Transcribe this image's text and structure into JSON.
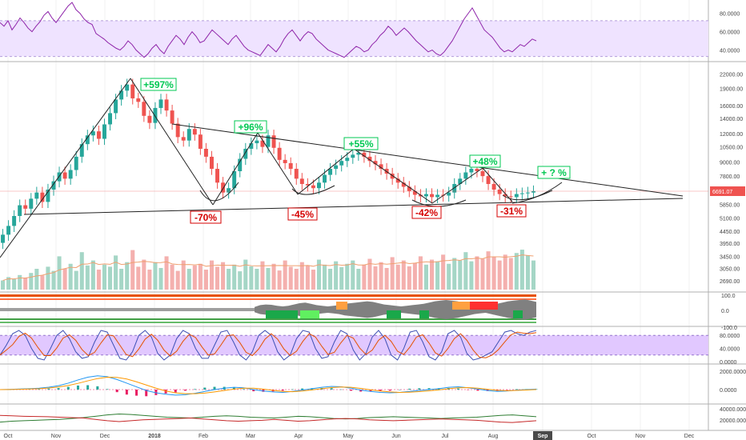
{
  "chart_data": [
    {
      "panel": "rsi-top",
      "type": "line",
      "y_ticks": [
        "80.0000",
        "60.0000",
        "40.0000"
      ],
      "ylim": [
        30,
        92
      ],
      "band": [
        33,
        72
      ],
      "colors": {
        "line": "#8e24aa",
        "band": "#efe3ff"
      },
      "values": [
        70,
        66,
        72,
        62,
        68,
        75,
        70,
        64,
        60,
        66,
        71,
        78,
        82,
        75,
        70,
        76,
        82,
        88,
        92,
        84,
        80,
        74,
        70,
        68,
        58,
        55,
        52,
        48,
        45,
        42,
        40,
        44,
        50,
        46,
        40,
        36,
        32,
        36,
        42,
        46,
        40,
        36,
        44,
        50,
        56,
        52,
        46,
        54,
        60,
        55,
        48,
        50,
        56,
        62,
        58,
        54,
        50,
        46,
        52,
        56,
        50,
        44,
        40,
        38,
        36,
        34,
        40,
        46,
        42,
        38,
        44,
        52,
        58,
        62,
        56,
        50,
        56,
        60,
        58,
        52,
        48,
        44,
        40,
        38,
        36,
        34,
        32,
        36,
        40,
        44,
        42,
        38,
        40,
        46,
        50,
        56,
        60,
        66,
        62,
        56,
        60,
        64,
        60,
        55,
        50,
        46,
        42,
        38,
        40,
        36,
        34,
        38,
        44,
        50,
        58,
        66,
        74,
        80,
        86,
        78,
        70,
        62,
        58,
        54,
        48,
        42,
        38,
        40,
        38,
        42,
        46,
        44,
        48,
        52,
        50
      ]
    },
    {
      "panel": "price",
      "type": "candlestick",
      "y_ticks": [
        "22000.00",
        "19000.00",
        "16000.00",
        "14000.00",
        "12000.00",
        "10500.00",
        "9000.00",
        "7800.00",
        "6800.00",
        "5850.00",
        "5100.00",
        "4450.00",
        "3950.00",
        "3450.00",
        "3050.00",
        "2690.00"
      ],
      "last_price_label": "6691.07",
      "closes": [
        4300,
        4700,
        5200,
        5800,
        5600,
        6200,
        6600,
        6000,
        6800,
        7400,
        8100,
        7600,
        8300,
        9500,
        10800,
        11800,
        12300,
        11400,
        13200,
        14800,
        17000,
        18600,
        19800,
        17200,
        16600,
        14400,
        13400,
        15600,
        17000,
        15200,
        13300,
        11600,
        11200,
        12600,
        11900,
        10300,
        9500,
        8400,
        7300,
        6600,
        6900,
        8200,
        9300,
        10300,
        10900,
        11200,
        10500,
        11800,
        10400,
        9200,
        8900,
        8400,
        7600,
        7200,
        7100,
        6900,
        7300,
        7900,
        8400,
        8700,
        9100,
        9400,
        9700,
        9900,
        9500,
        9100,
        8800,
        8400,
        8000,
        7600,
        7300,
        7000,
        6700,
        6450,
        6350,
        6500,
        6300,
        6450,
        6400,
        6600,
        7200,
        7600,
        8100,
        8400,
        8200,
        7800,
        7200,
        6800,
        6500,
        6350,
        6300,
        6500,
        6550,
        6600,
        6691
      ],
      "volumes": [
        0.22,
        0.3,
        0.25,
        0.35,
        0.28,
        0.4,
        0.5,
        0.34,
        0.55,
        0.45,
        0.8,
        0.5,
        0.62,
        0.45,
        0.9,
        0.58,
        0.7,
        0.48,
        0.6,
        0.55,
        0.82,
        0.5,
        0.66,
        0.95,
        0.55,
        0.72,
        0.48,
        0.66,
        0.52,
        0.8,
        0.6,
        0.45,
        0.7,
        0.5,
        0.58,
        0.62,
        0.48,
        0.7,
        0.55,
        0.66,
        0.5,
        0.6,
        0.44,
        0.72,
        0.56,
        0.5,
        0.68,
        0.52,
        0.62,
        0.46,
        0.7,
        0.55,
        0.5,
        0.66,
        0.58,
        0.48,
        0.72,
        0.6,
        0.5,
        0.68,
        0.54,
        0.62,
        0.7,
        0.5,
        0.6,
        0.74,
        0.56,
        0.66,
        0.52,
        0.78,
        0.6,
        0.7,
        0.56,
        0.64,
        0.8,
        0.6,
        0.72,
        0.68,
        0.84,
        0.62,
        0.76,
        0.7,
        0.9,
        0.68,
        0.8,
        0.74,
        0.92,
        0.78,
        0.7,
        0.84,
        0.76,
        0.88,
        0.96,
        0.82,
        0.7
      ],
      "colors": {
        "up": "#26a69a",
        "down": "#ef5350",
        "up_vol": "#a5d6c6",
        "down_vol": "#f4b0ae",
        "vol_ma": "#f0a070",
        "last_price": "#ef5350"
      },
      "annotations": [
        {
          "label": "+597%",
          "color": "#00c853"
        },
        {
          "label": "-70%",
          "color": "#d50000"
        },
        {
          "label": "+96%",
          "color": "#00c853"
        },
        {
          "label": "-45%",
          "color": "#d50000"
        },
        {
          "label": "+55%",
          "color": "#00c853"
        },
        {
          "label": "-42%",
          "color": "#d50000"
        },
        {
          "label": "+48%",
          "color": "#00c853"
        },
        {
          "label": "-31%",
          "color": "#d50000"
        },
        {
          "label": "+ ? %",
          "color": "#00c853"
        }
      ]
    },
    {
      "panel": "momentum-band",
      "type": "area",
      "y_ticks": [
        "100.0",
        "0.0",
        "-100.0"
      ],
      "colors": {
        "gray": "#808080",
        "orange": "#ffa040",
        "red": "#ff3030",
        "green": "#1aa84a",
        "lightgreen": "#60f060",
        "top_line": "#e65100",
        "top_line2": "#ff7043",
        "bottom_line": "#43a047",
        "bottom_line2": "#66bb6a"
      },
      "gray_area": [
        8,
        14,
        16,
        15,
        12,
        10,
        12,
        16,
        20,
        22,
        18,
        14,
        12,
        10,
        12,
        14,
        18,
        20,
        22,
        24,
        26,
        24,
        20,
        16,
        14,
        12,
        10,
        12,
        14,
        16,
        18,
        22,
        26,
        28,
        30,
        28,
        26,
        22,
        18,
        14,
        12,
        10,
        14,
        18,
        22,
        26,
        28,
        30,
        32,
        28,
        24
      ]
    },
    {
      "panel": "stoch-rsi",
      "type": "line",
      "y_ticks": [
        "80.0000",
        "40.0000",
        "0.0000"
      ],
      "band": [
        20,
        80
      ],
      "colors": {
        "k": "#3f51b5",
        "d": "#e65100",
        "band": "#e1c8ff"
      },
      "values_k": [
        20,
        50,
        85,
        95,
        80,
        40,
        10,
        5,
        40,
        80,
        95,
        70,
        30,
        10,
        15,
        60,
        95,
        90,
        50,
        10,
        5,
        30,
        80,
        95,
        75,
        25,
        5,
        20,
        70,
        95,
        85,
        40,
        10,
        10,
        50,
        90,
        95,
        60,
        20,
        5,
        30,
        80,
        95,
        80,
        30,
        5,
        20,
        70,
        95,
        90,
        40,
        10,
        15,
        60,
        95,
        85,
        35,
        5,
        25,
        75,
        95,
        70,
        20,
        5,
        40,
        90,
        95,
        60,
        15,
        5,
        30,
        85,
        95,
        75,
        25,
        5,
        10,
        20,
        30,
        60,
        90,
        95,
        85,
        80,
        90,
        95
      ]
    },
    {
      "panel": "macd",
      "type": "line",
      "y_ticks": [
        "2000.0000",
        "0.0000"
      ],
      "colors": {
        "macd": "#2196f3",
        "signal": "#ff9800",
        "hist_up": "#26a69a",
        "hist_down": "#e91e63"
      },
      "macd": [
        0,
        20,
        60,
        100,
        150,
        260,
        420,
        700,
        1050,
        1350,
        1500,
        1400,
        1100,
        700,
        300,
        -100,
        -350,
        -500,
        -600,
        -550,
        -400,
        -200,
        0,
        150,
        250,
        200,
        0,
        -150,
        -250,
        -300,
        -200,
        -50,
        100,
        250,
        350,
        300,
        150,
        -50,
        -200,
        -300,
        -350,
        -300,
        -200,
        -100,
        0,
        100,
        250,
        300,
        200,
        50,
        -100,
        -200,
        -150,
        -50,
        0,
        50
      ],
      "signal": [
        0,
        10,
        30,
        60,
        100,
        170,
        280,
        450,
        680,
        950,
        1200,
        1350,
        1330,
        1150,
        850,
        500,
        150,
        -150,
        -350,
        -450,
        -450,
        -380,
        -250,
        -100,
        50,
        150,
        150,
        50,
        -80,
        -200,
        -230,
        -150,
        -30,
        100,
        220,
        280,
        250,
        130,
        -20,
        -150,
        -250,
        -300,
        -280,
        -220,
        -130,
        -30,
        100,
        200,
        220,
        150,
        30,
        -80,
        -120,
        -90,
        -40,
        10
      ]
    },
    {
      "panel": "bottom-lines",
      "type": "line",
      "y_ticks": [
        "40000.0000",
        "20000.0000"
      ],
      "colors": {
        "green": "#2e7d32",
        "red": "#c62828"
      },
      "green": [
        0.3,
        0.34,
        0.36,
        0.38,
        0.4,
        0.42,
        0.46,
        0.5,
        0.56,
        0.62,
        0.66,
        0.64,
        0.6,
        0.56,
        0.52,
        0.5,
        0.48,
        0.52,
        0.56,
        0.58,
        0.56,
        0.52,
        0.5,
        0.48,
        0.52,
        0.56,
        0.54,
        0.5,
        0.46,
        0.44,
        0.46,
        0.5,
        0.52,
        0.54,
        0.52,
        0.5,
        0.48,
        0.46,
        0.48,
        0.5,
        0.52,
        0.56,
        0.6,
        0.62,
        0.58,
        0.54
      ],
      "red": [
        0.6,
        0.58,
        0.56,
        0.55,
        0.54,
        0.52,
        0.5,
        0.48,
        0.42,
        0.36,
        0.32,
        0.36,
        0.4,
        0.42,
        0.44,
        0.46,
        0.48,
        0.44,
        0.4,
        0.36,
        0.34,
        0.36,
        0.38,
        0.42,
        0.38,
        0.34,
        0.36,
        0.4,
        0.44,
        0.46,
        0.44,
        0.4,
        0.38,
        0.36,
        0.38,
        0.4,
        0.42,
        0.44,
        0.42,
        0.4,
        0.38,
        0.34,
        0.3,
        0.28,
        0.32,
        0.36
      ]
    }
  ],
  "x_axis": {
    "labels": [
      "Oct",
      "Nov",
      "Dec",
      "2018",
      "Feb",
      "Mar",
      "Apr",
      "May",
      "Jun",
      "Jul",
      "Aug",
      "Sep",
      "Oct",
      "Nov",
      "Dec"
    ],
    "bold_labels": [
      "2018",
      "Sep"
    ]
  }
}
